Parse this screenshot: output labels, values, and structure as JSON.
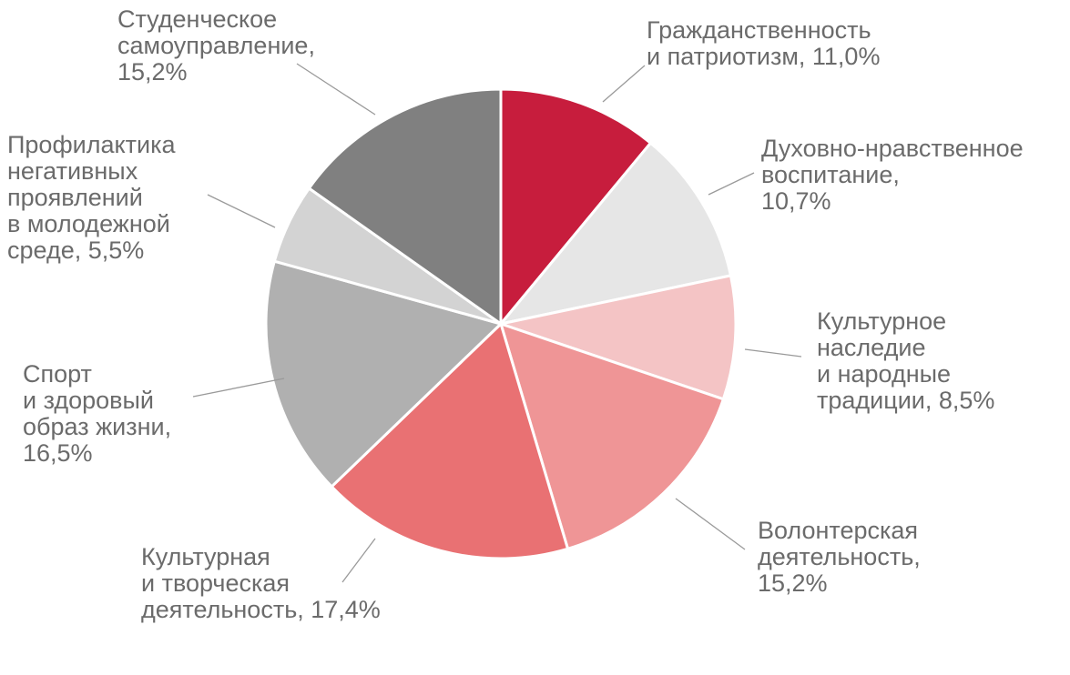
{
  "chart_data": {
    "type": "pie",
    "colors": {
      "separator": "#ffffff",
      "leader_line": "#9a9a9a",
      "label_text": "#6b6b6b"
    },
    "slices": [
      {
        "value": 11.0,
        "color": "#c71d3d",
        "label_lines": [
          "Гражданственность",
          "и патриотизм, 11,0%"
        ]
      },
      {
        "value": 10.7,
        "color": "#e6e6e6",
        "label_lines": [
          "Духовно-нравственное",
          "воспитание,",
          "10,7%"
        ]
      },
      {
        "value": 8.5,
        "color": "#f4c4c5",
        "label_lines": [
          "Культурное",
          "наследие",
          "и народные",
          "традиции, 8,5%"
        ]
      },
      {
        "value": 15.2,
        "color": "#ef9596",
        "label_lines": [
          "Волонтерская",
          "деятельность,",
          "15,2%"
        ]
      },
      {
        "value": 17.4,
        "color": "#e97173",
        "label_lines": [
          "Культурная",
          "и творческая",
          "деятельность, 17,4%"
        ]
      },
      {
        "value": 16.5,
        "color": "#b0b0b0",
        "label_lines": [
          "Спорт",
          "и здоровый",
          "образ жизни,",
          "16,5%"
        ]
      },
      {
        "value": 5.5,
        "color": "#d3d3d3",
        "label_lines": [
          "Профилактика",
          "негативных",
          "проявлений",
          "в молодежной",
          "среде, 5,5%"
        ]
      },
      {
        "value": 15.2,
        "color": "#808080",
        "label_lines": [
          "Студенческое",
          "самоуправление,",
          "15,2%"
        ]
      }
    ]
  }
}
